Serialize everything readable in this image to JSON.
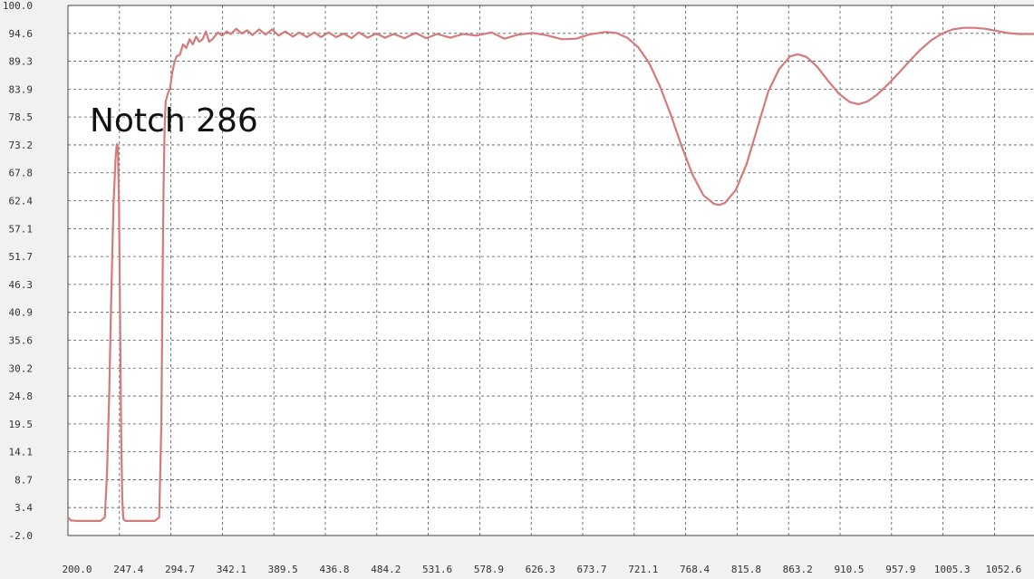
{
  "chart_data": {
    "type": "line",
    "title": "",
    "xlabel": "",
    "ylabel": "",
    "x_ticks": [
      "200.0",
      "247.4",
      "294.7",
      "342.1",
      "389.5",
      "436.8",
      "484.2",
      "531.6",
      "578.9",
      "626.3",
      "673.7",
      "721.1",
      "768.4",
      "815.8",
      "863.2",
      "910.5",
      "957.9",
      "1005.3",
      "1052.6"
    ],
    "y_ticks": [
      "100.0",
      "94.6",
      "89.3",
      "83.9",
      "78.5",
      "73.2",
      "67.8",
      "62.4",
      "57.1",
      "51.7",
      "46.3",
      "40.9",
      "35.6",
      "30.2",
      "24.8",
      "19.5",
      "14.1",
      "8.7",
      "3.4",
      "-2.0"
    ],
    "xlim": [
      200.0,
      1100.0
    ],
    "ylim": [
      -2.0,
      100.0
    ],
    "grid": true,
    "line_color": "#d47a7a",
    "annotations": [
      {
        "text": "Notch 286"
      }
    ],
    "series": [
      {
        "values": [
          [
            200,
            1.5
          ],
          [
            203,
            0.9
          ],
          [
            208,
            0.8
          ],
          [
            230,
            0.8
          ],
          [
            234,
            1.5
          ],
          [
            236,
            10
          ],
          [
            238,
            25
          ],
          [
            240,
            45
          ],
          [
            242,
            62
          ],
          [
            244,
            71
          ],
          [
            245,
            73.3
          ],
          [
            246,
            72.5
          ],
          [
            247,
            62
          ],
          [
            248,
            40
          ],
          [
            249,
            18
          ],
          [
            250,
            5
          ],
          [
            251,
            1.2
          ],
          [
            253,
            0.8
          ],
          [
            280,
            0.8
          ],
          [
            284,
            1.5
          ],
          [
            286,
            20
          ],
          [
            287,
            45
          ],
          [
            288,
            65
          ],
          [
            289,
            76
          ],
          [
            290,
            81.5
          ],
          [
            292,
            83
          ],
          [
            294,
            84
          ],
          [
            296,
            87
          ],
          [
            298,
            89
          ],
          [
            300,
            90.2
          ],
          [
            303,
            90.5
          ],
          [
            306,
            92.5
          ],
          [
            309,
            91.8
          ],
          [
            312,
            93.5
          ],
          [
            315,
            92.5
          ],
          [
            318,
            94
          ],
          [
            321,
            93
          ],
          [
            324,
            93.5
          ],
          [
            327,
            95
          ],
          [
            330,
            93
          ],
          [
            333,
            93.5
          ],
          [
            338,
            94.8
          ],
          [
            342,
            94.2
          ],
          [
            346,
            95
          ],
          [
            350,
            94.5
          ],
          [
            355,
            95.5
          ],
          [
            360,
            94.6
          ],
          [
            365,
            95.2
          ],
          [
            370,
            94.3
          ],
          [
            376,
            95.4
          ],
          [
            382,
            94.4
          ],
          [
            388,
            95.4
          ],
          [
            394,
            94.2
          ],
          [
            400,
            95
          ],
          [
            407,
            94
          ],
          [
            413,
            94.8
          ],
          [
            420,
            93.9
          ],
          [
            427,
            94.8
          ],
          [
            433,
            93.9
          ],
          [
            440,
            94.8
          ],
          [
            447,
            93.9
          ],
          [
            454,
            94.6
          ],
          [
            461,
            93.7
          ],
          [
            468,
            94.8
          ],
          [
            476,
            93.8
          ],
          [
            484,
            94.6
          ],
          [
            492,
            93.8
          ],
          [
            500,
            94.5
          ],
          [
            510,
            93.7
          ],
          [
            520,
            94.7
          ],
          [
            530,
            93.7
          ],
          [
            540,
            94.5
          ],
          [
            552,
            93.8
          ],
          [
            564,
            94.5
          ],
          [
            576,
            94.2
          ],
          [
            590,
            94.8
          ],
          [
            602,
            93.6
          ],
          [
            615,
            94.4
          ],
          [
            628,
            94.7
          ],
          [
            640,
            94.3
          ],
          [
            655,
            93.5
          ],
          [
            668,
            93.6
          ],
          [
            680,
            94.4
          ],
          [
            695,
            94.9
          ],
          [
            705,
            94.7
          ],
          [
            715,
            93.8
          ],
          [
            725,
            92
          ],
          [
            735,
            89
          ],
          [
            745,
            84.5
          ],
          [
            755,
            79
          ],
          [
            765,
            73
          ],
          [
            775,
            67.5
          ],
          [
            785,
            63.5
          ],
          [
            795,
            61.8
          ],
          [
            800,
            61.6
          ],
          [
            805,
            62
          ],
          [
            815,
            64.5
          ],
          [
            825,
            69.5
          ],
          [
            835,
            76.5
          ],
          [
            845,
            83.5
          ],
          [
            855,
            87.8
          ],
          [
            865,
            90.2
          ],
          [
            872,
            90.6
          ],
          [
            880,
            90.1
          ],
          [
            890,
            88.2
          ],
          [
            900,
            85.5
          ],
          [
            910,
            83
          ],
          [
            920,
            81.4
          ],
          [
            928,
            81
          ],
          [
            936,
            81.5
          ],
          [
            945,
            82.8
          ],
          [
            955,
            84.8
          ],
          [
            965,
            87
          ],
          [
            975,
            89.3
          ],
          [
            985,
            91.5
          ],
          [
            995,
            93.3
          ],
          [
            1005,
            94.6
          ],
          [
            1015,
            95.4
          ],
          [
            1025,
            95.7
          ],
          [
            1035,
            95.7
          ],
          [
            1045,
            95.5
          ],
          [
            1055,
            95.1
          ],
          [
            1065,
            94.7
          ],
          [
            1075,
            94.5
          ],
          [
            1100,
            94.5
          ]
        ]
      }
    ]
  }
}
